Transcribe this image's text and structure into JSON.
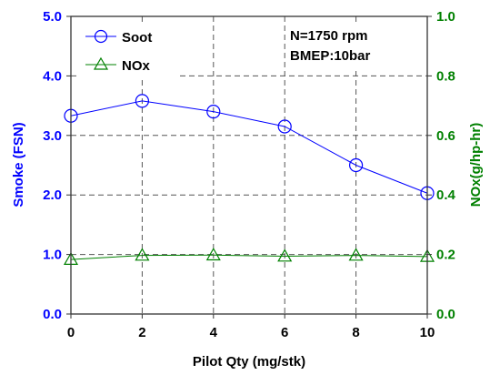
{
  "chart_data": {
    "type": "line",
    "x": [
      0,
      2,
      4,
      6,
      8,
      10
    ],
    "xlabel": "Pilot Qty (mg/stk)",
    "xlim": [
      0,
      10
    ],
    "xticks": [
      "0",
      "2",
      "4",
      "6",
      "8",
      "10"
    ],
    "ylabel": "Smoke (FSN)",
    "ylim": [
      0,
      5
    ],
    "yticks": [
      "0.0",
      "1.0",
      "2.0",
      "3.0",
      "4.0",
      "5.0"
    ],
    "y2label": "NOx(g/hp-hr)",
    "y2lim": [
      0,
      1
    ],
    "y2ticks": [
      "0.0",
      "0.2",
      "0.4",
      "0.6",
      "0.8",
      "1.0"
    ],
    "grid": true,
    "legend_position": "top-left",
    "annotation_line1": "N=1750 rpm",
    "annotation_line2": "BMEP:10bar",
    "series": [
      {
        "name": "Soot",
        "axis": "left",
        "marker": "circle",
        "color": "#0000ff",
        "values": [
          3.33,
          3.58,
          3.4,
          3.15,
          2.5,
          2.03
        ]
      },
      {
        "name": "NOx",
        "axis": "right",
        "marker": "triangle",
        "color": "#008000",
        "values": [
          0.183,
          0.197,
          0.198,
          0.194,
          0.197,
          0.193
        ]
      }
    ],
    "colors": {
      "left_axis": "#0000ff",
      "right_axis": "#008000",
      "grid": "#555555"
    }
  }
}
